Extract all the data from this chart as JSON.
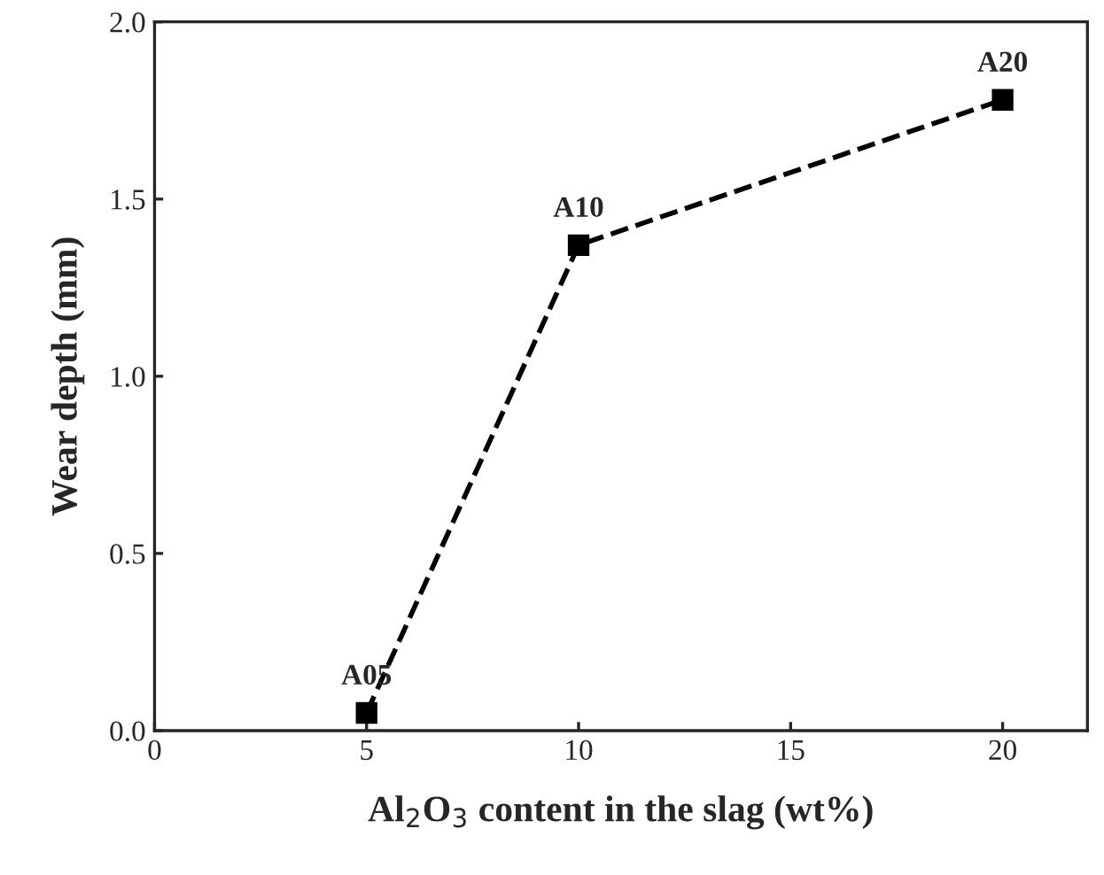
{
  "chart_data": {
    "type": "line",
    "xlabel": "Al$_{2}$O$_{3}$ content in the slag (wt%)",
    "ylabel": "Wear depth (mm)",
    "x": [
      5,
      10,
      20
    ],
    "series": [
      {
        "color": "#000000",
        "values": [
          0.05,
          1.37,
          1.78
        ]
      }
    ],
    "marker": "square",
    "line_style": "dashed",
    "grid": false,
    "legend": false,
    "xlim": [
      0,
      22
    ],
    "xticks": [
      0,
      5,
      10,
      15,
      20
    ],
    "ylim": [
      0,
      2.0
    ],
    "yticks": [
      {
        "value": 0,
        "label": "0.0"
      },
      {
        "value": 0.5,
        "label": "0.5"
      },
      {
        "value": 1.0,
        "label": "1.0"
      },
      {
        "value": 1.5,
        "label": "1.5"
      },
      {
        "value": 2.0,
        "label": "2.0"
      }
    ],
    "annotations": [
      {
        "text": "A05",
        "x": 5,
        "y": 0.05
      },
      {
        "text": "A10",
        "x": 10,
        "y": 1.37
      },
      {
        "text": "A20",
        "x": 20,
        "y": 1.78
      }
    ]
  }
}
